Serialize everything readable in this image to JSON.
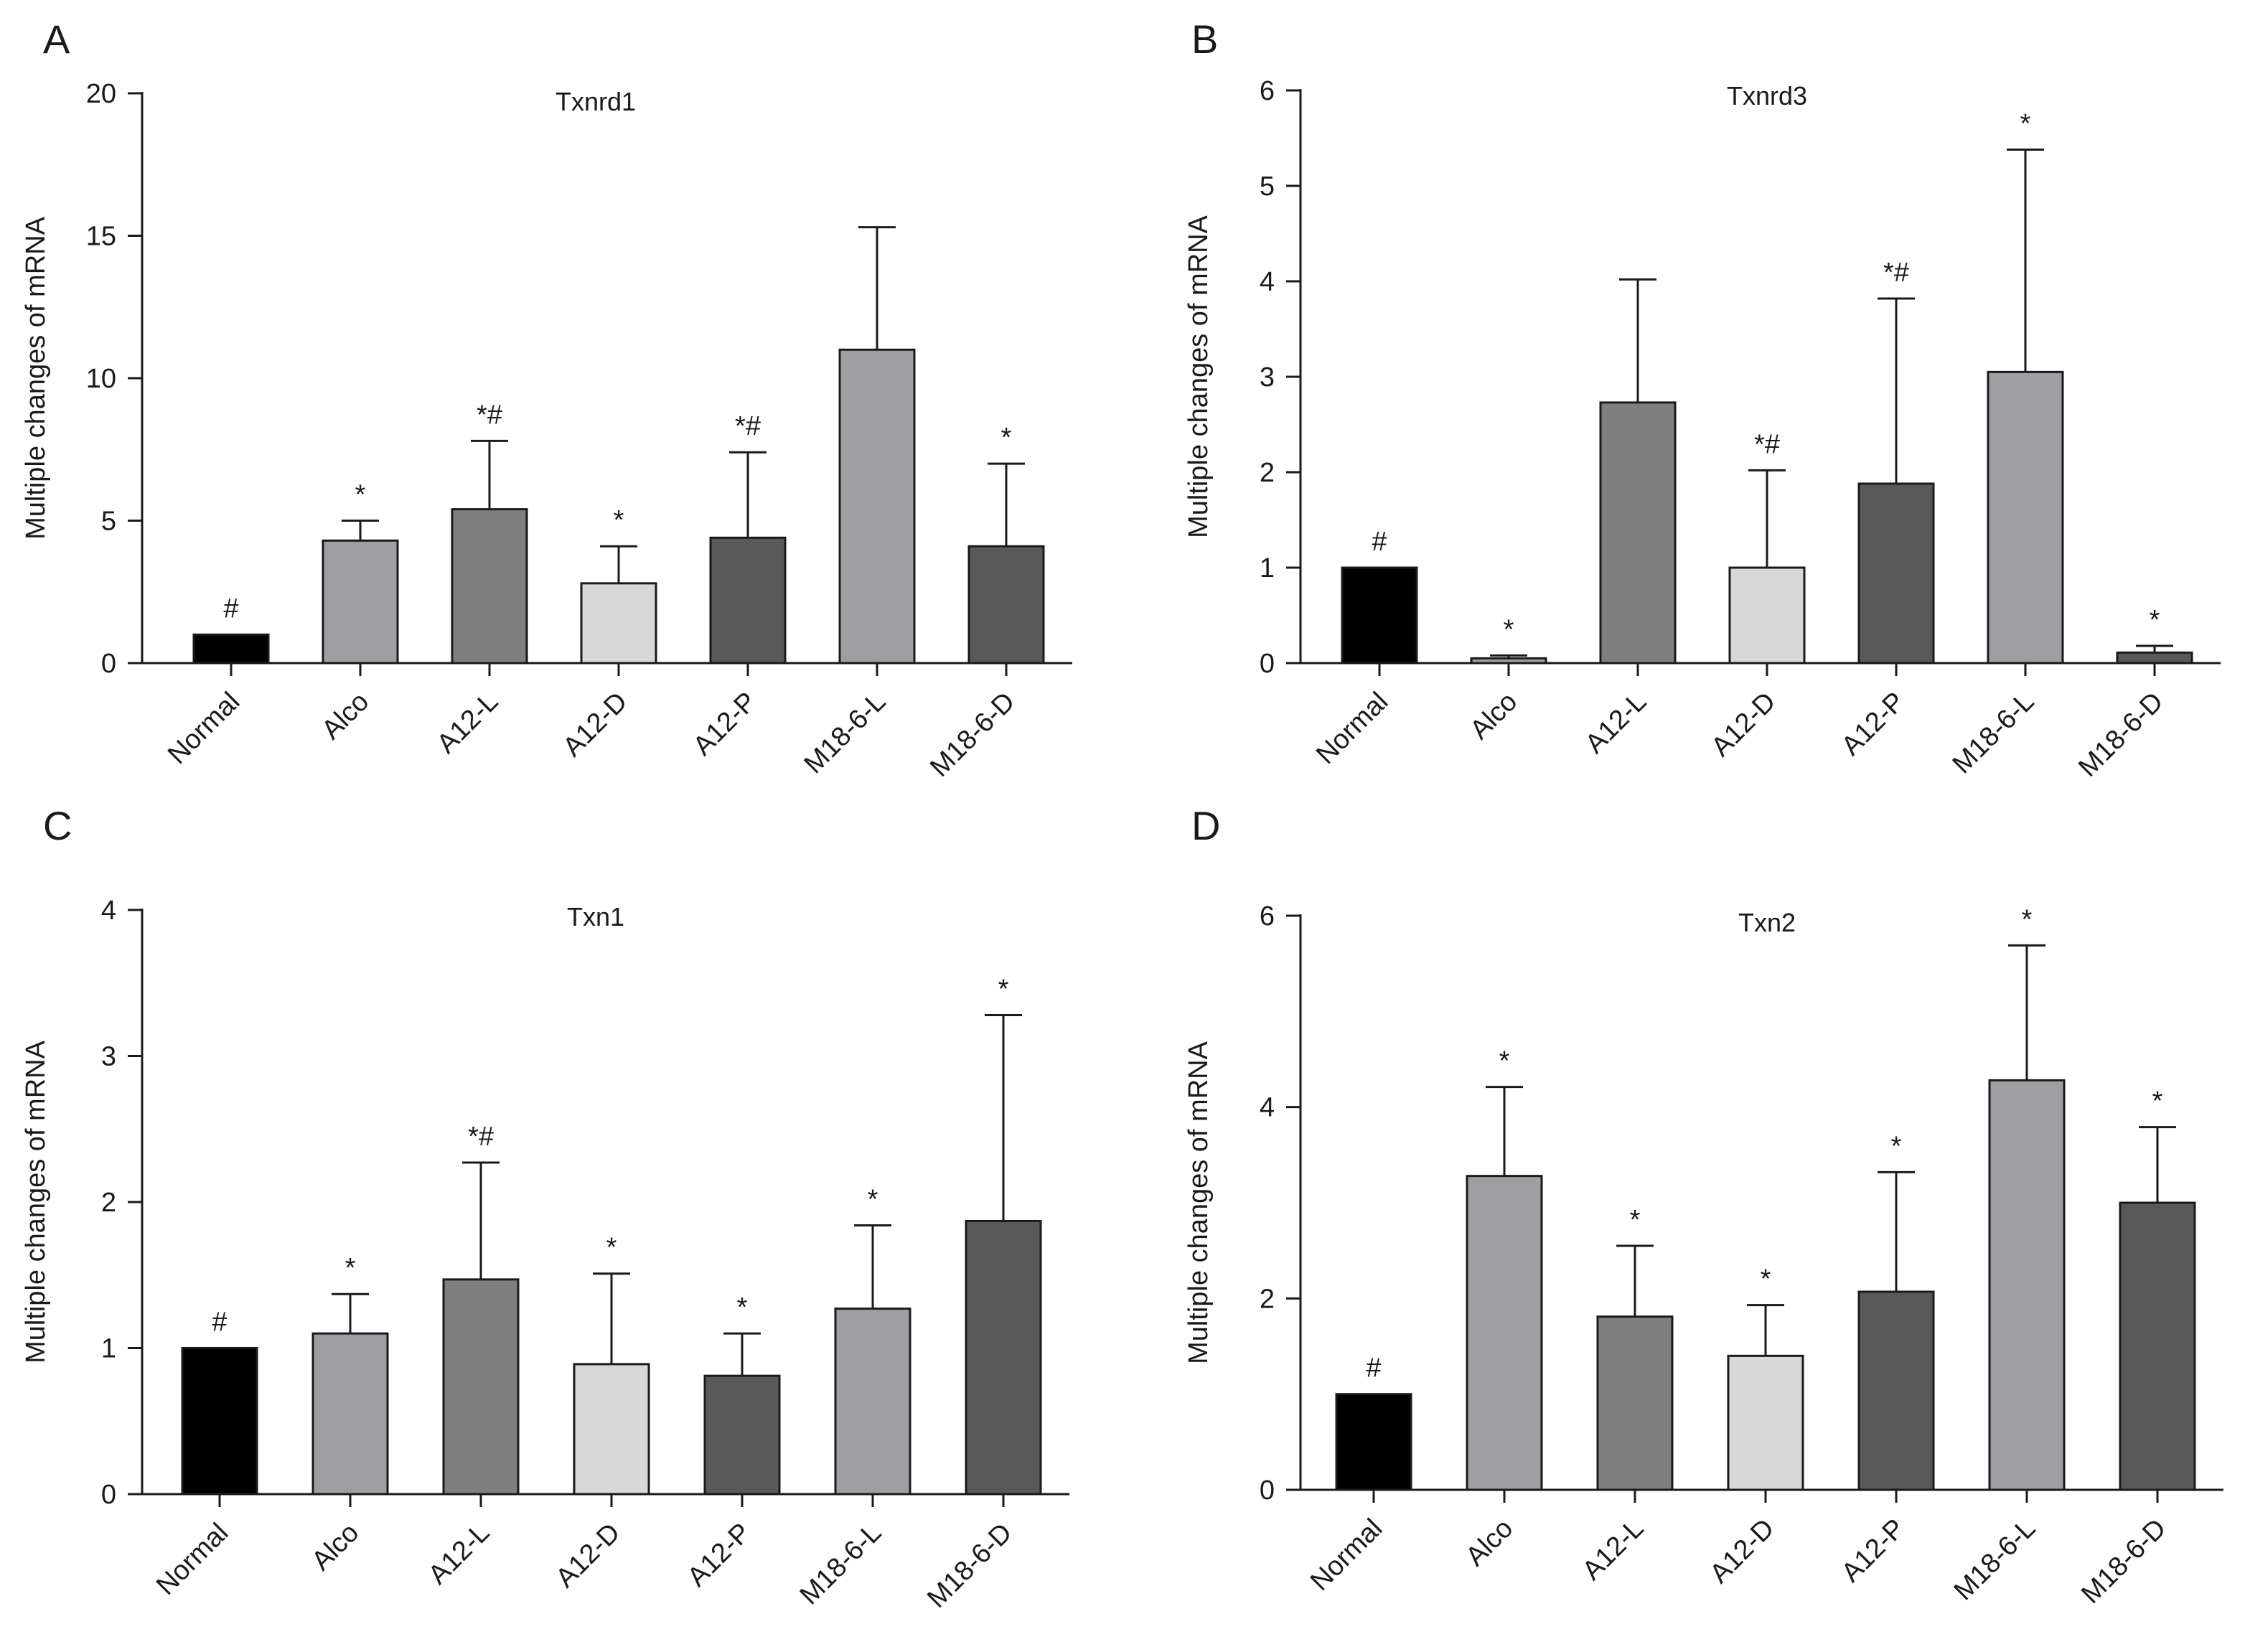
{
  "figure": {
    "colors": {
      "Normal": "#000000",
      "Alco": "#9f9fa3",
      "A12-L": "#7f7f7f",
      "A12-D": "#d8d8d8",
      "A12-P": "#595959",
      "M18-6-L": "#9f9fa3",
      "M18-6-D": "#595959"
    }
  },
  "chart_data": [
    {
      "panel": "A",
      "type": "bar",
      "title": "Txnrd1",
      "ylabel": "Multiple changes of mRNA",
      "xlabel": "",
      "ylim": [
        0,
        20
      ],
      "yticks": [
        0,
        5,
        10,
        15,
        20
      ],
      "categories": [
        "Normal",
        "Alco",
        "A12-L",
        "A12-D",
        "A12-P",
        "M18-6-L",
        "M18-6-D"
      ],
      "values": [
        1.0,
        4.3,
        5.4,
        2.8,
        4.4,
        11.0,
        4.1
      ],
      "errors": [
        0,
        0.7,
        2.4,
        1.3,
        3.0,
        4.3,
        2.9
      ],
      "annotations": [
        "#",
        "*",
        "*#",
        "*",
        "*#",
        "",
        "*"
      ]
    },
    {
      "panel": "B",
      "type": "bar",
      "title": "Txnrd3",
      "ylabel": "Multiple changes of mRNA",
      "xlabel": "",
      "ylim": [
        0,
        6
      ],
      "yticks": [
        0,
        1,
        2,
        3,
        4,
        5,
        6
      ],
      "categories": [
        "Normal",
        "Alco",
        "A12-L",
        "A12-D",
        "A12-P",
        "M18-6-L",
        "M18-6-D"
      ],
      "values": [
        1.0,
        0.05,
        2.73,
        1.0,
        1.88,
        3.05,
        0.11
      ],
      "errors": [
        0,
        0.03,
        1.29,
        1.02,
        1.94,
        2.33,
        0.07
      ],
      "annotations": [
        "#",
        "*",
        "",
        "*#",
        "*#",
        "*",
        "*"
      ]
    },
    {
      "panel": "C",
      "type": "bar",
      "title": "Txn1",
      "ylabel": "Multiple changes of mRNA",
      "xlabel": "",
      "ylim": [
        0,
        4
      ],
      "yticks": [
        0,
        1,
        2,
        3,
        4
      ],
      "categories": [
        "Normal",
        "Alco",
        "A12-L",
        "A12-D",
        "A12-P",
        "M18-6-L",
        "M18-6-D"
      ],
      "values": [
        1.0,
        1.1,
        1.47,
        0.89,
        0.81,
        1.27,
        1.87
      ],
      "errors": [
        0,
        0.27,
        0.8,
        0.62,
        0.29,
        0.57,
        1.41
      ],
      "annotations": [
        "#",
        "*",
        "*#",
        "*",
        "*",
        "*",
        "*"
      ]
    },
    {
      "panel": "D",
      "type": "bar",
      "title": "Txn2",
      "ylabel": "Multiple changes of mRNA",
      "xlabel": "",
      "ylim": [
        0,
        6
      ],
      "yticks": [
        0,
        2,
        4,
        6
      ],
      "categories": [
        "Normal",
        "Alco",
        "A12-L",
        "A12-D",
        "A12-P",
        "M18-6-L",
        "M18-6-D"
      ],
      "values": [
        1.0,
        3.28,
        1.81,
        1.4,
        2.07,
        4.28,
        3.0
      ],
      "errors": [
        0,
        0.93,
        0.74,
        0.53,
        1.25,
        1.41,
        0.79
      ],
      "annotations": [
        "#",
        "*",
        "*",
        "*",
        "*",
        "*",
        "*"
      ]
    }
  ]
}
